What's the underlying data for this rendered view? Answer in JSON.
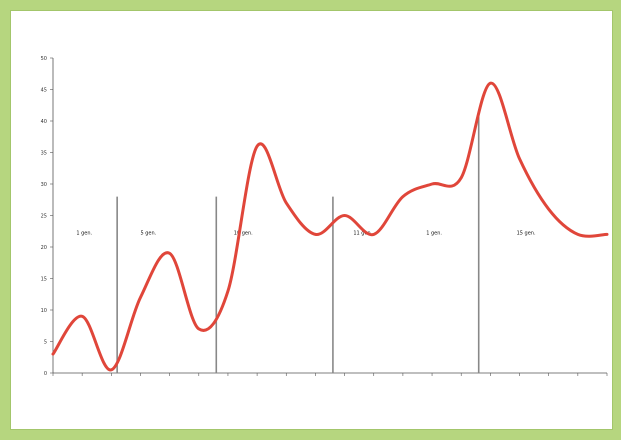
{
  "chart_data": {
    "type": "line",
    "title": "",
    "xlabel": "",
    "ylabel": "",
    "ylim": [
      0,
      50
    ],
    "yticks": [
      0,
      5,
      10,
      15,
      20,
      25,
      30,
      35,
      40,
      45,
      50
    ],
    "x_tick_labels": [
      "",
      "",
      "",
      "",
      "",
      "",
      "",
      "",
      "",
      "",
      "",
      "",
      "",
      "",
      "",
      "",
      "",
      "",
      "",
      ""
    ],
    "series": [
      {
        "name": "",
        "color": "#e0463a",
        "x": [
          0,
          1,
          2,
          3,
          4,
          5,
          6,
          7,
          8,
          9,
          10,
          11,
          12,
          13,
          14,
          15,
          16,
          17,
          18,
          19
        ],
        "values": [
          3,
          9,
          0.5,
          12,
          19,
          7,
          13,
          36,
          27,
          22,
          25,
          22,
          28,
          30,
          31,
          46,
          34,
          26,
          22,
          22
        ]
      }
    ],
    "dividers": [
      {
        "x": 2.2,
        "top": 28
      },
      {
        "x": 5.6,
        "top": 28
      },
      {
        "x": 9.6,
        "top": 28
      },
      {
        "x": 14.6,
        "top": 41
      }
    ],
    "segment_labels": [
      {
        "x": 0.8,
        "y": 22,
        "text": "1 gen."
      },
      {
        "x": 3.0,
        "y": 22,
        "text": "5 gen."
      },
      {
        "x": 6.2,
        "y": 22,
        "text": "10 gen."
      },
      {
        "x": 10.3,
        "y": 22,
        "text": "11 gen."
      },
      {
        "x": 12.8,
        "y": 22,
        "text": "1 gen."
      },
      {
        "x": 15.9,
        "y": 22,
        "text": "15 gen."
      }
    ]
  }
}
